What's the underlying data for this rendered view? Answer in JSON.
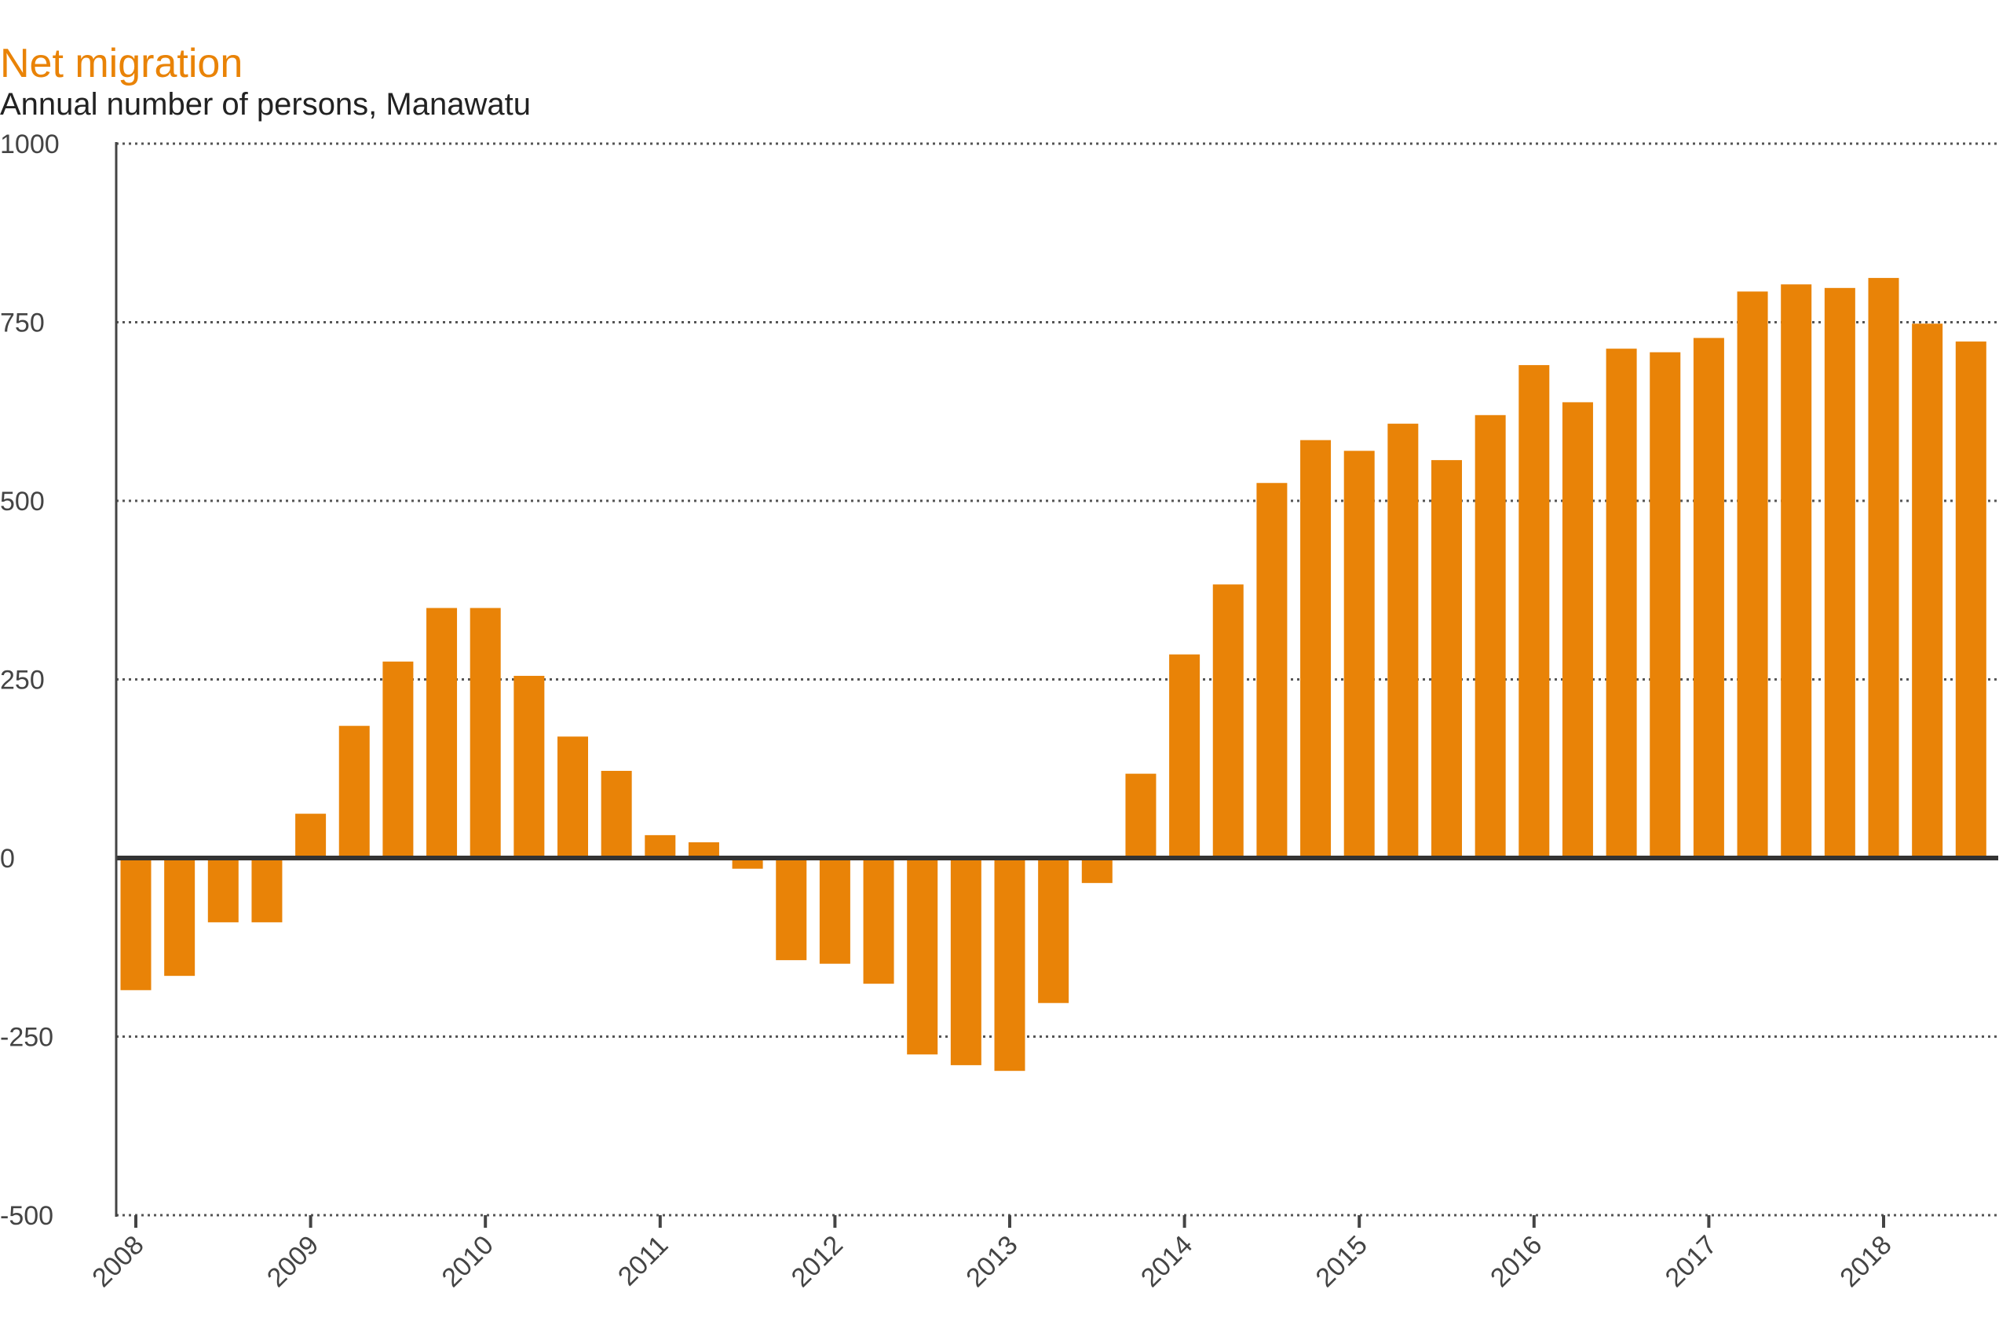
{
  "chart_data": {
    "type": "bar",
    "title": "Net migration",
    "subtitle": "Annual number of persons, Manawatu",
    "xlabel": "",
    "ylabel": "",
    "ylim": [
      -500,
      1000
    ],
    "yticks": [
      "1000",
      "750",
      "500",
      "250",
      "0",
      "-250",
      "-500"
    ],
    "ytick_values": [
      1000,
      750,
      500,
      250,
      0,
      -250,
      -500
    ],
    "xtick_labels": [
      "2008",
      "2009",
      "2010",
      "2011",
      "2012",
      "2013",
      "2014",
      "2015",
      "2016",
      "2017",
      "2018"
    ],
    "grid": true,
    "grid_style": "dotted horizontal",
    "start_year": 2008,
    "periods_per_year": 4,
    "values": [
      -185,
      -165,
      -90,
      -90,
      62,
      185,
      275,
      350,
      350,
      255,
      170,
      122,
      32,
      22,
      -15,
      -143,
      -148,
      -176,
      -275,
      -290,
      -298,
      -203,
      -35,
      118,
      285,
      383,
      525,
      585,
      570,
      608,
      557,
      620,
      690,
      638,
      713,
      708,
      728,
      793,
      803,
      798,
      812,
      748,
      723
    ],
    "colors": {
      "bar": "#E98307",
      "title": "#E98307",
      "text": "#222222",
      "axis": "#444444",
      "grid": "#555555"
    }
  }
}
